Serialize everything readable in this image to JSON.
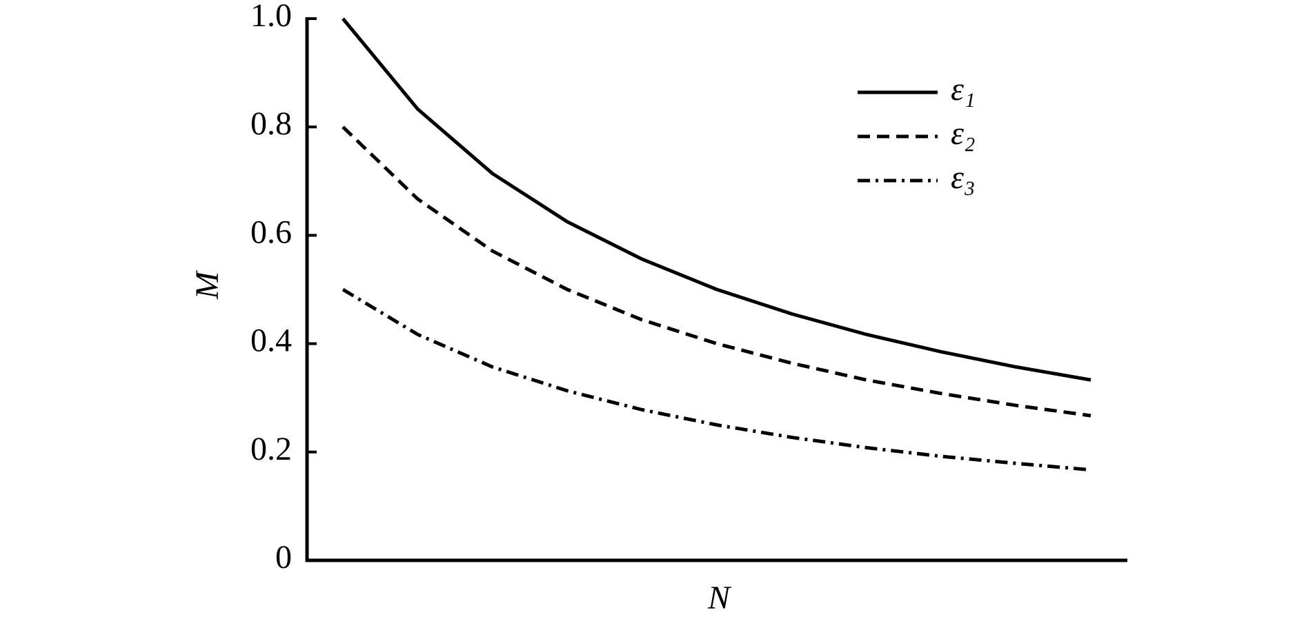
{
  "chart_data": {
    "type": "line",
    "xlabel": "N",
    "ylabel": "M",
    "categories": [
      null,
      null,
      null,
      null,
      null,
      null,
      null,
      null,
      null,
      null,
      null
    ],
    "series": [
      {
        "name": "ε₁",
        "color": "#000000",
        "dash": "solid",
        "values": [
          1.0,
          0.833,
          0.714,
          0.625,
          0.556,
          0.5,
          0.455,
          0.417,
          0.385,
          0.357,
          0.333
        ]
      },
      {
        "name": "ε₂",
        "color": "#000000",
        "dash": "dashed",
        "values": [
          0.8,
          0.667,
          0.571,
          0.5,
          0.444,
          0.4,
          0.364,
          0.333,
          0.308,
          0.286,
          0.267
        ]
      },
      {
        "name": "ε₃",
        "color": "#000000",
        "dash": "dashdot",
        "values": [
          0.5,
          0.417,
          0.357,
          0.313,
          0.278,
          0.25,
          0.227,
          0.208,
          0.192,
          0.179,
          0.167
        ]
      }
    ],
    "ylim": [
      0,
      1
    ],
    "yticks": [
      0,
      0.2,
      0.4,
      0.6,
      0.8,
      {
        "value": 1,
        "label": "1.0"
      }
    ],
    "grid": false,
    "legend": "upper right"
  }
}
